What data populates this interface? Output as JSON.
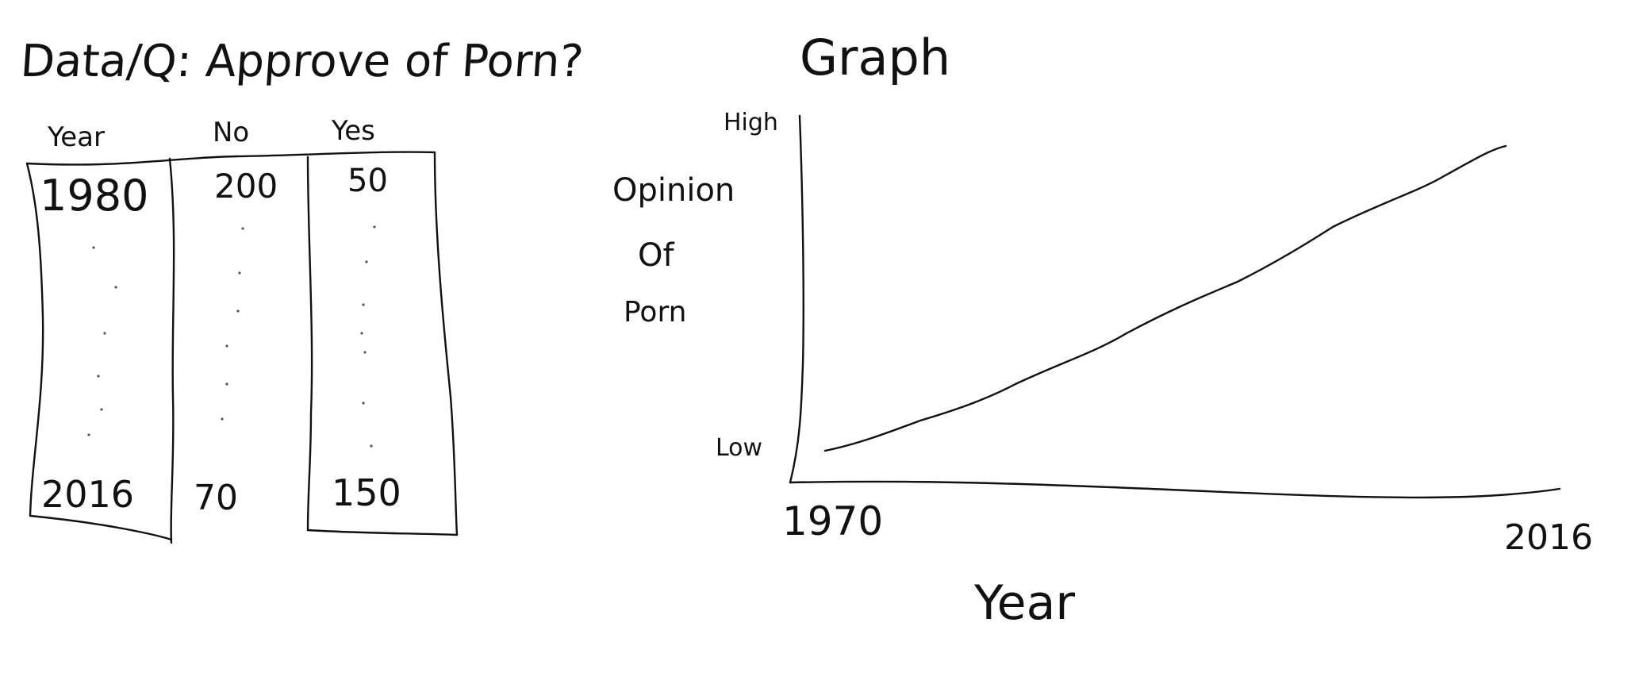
{
  "data_section": {
    "title": "Data/Q: Approve of Porn?",
    "columns": [
      "Year",
      "No",
      "Yes"
    ],
    "rows": [
      [
        "1980",
        "200",
        "50"
      ],
      [
        "2016",
        "70",
        "150"
      ]
    ]
  },
  "graph_section": {
    "title": "Graph",
    "y_axis_label_lines": [
      "Opinion",
      "Of",
      "Porn"
    ],
    "y_high": "High",
    "y_low": "Low",
    "x_start": "1970",
    "x_end": "2016",
    "x_axis_label": "Year"
  }
}
